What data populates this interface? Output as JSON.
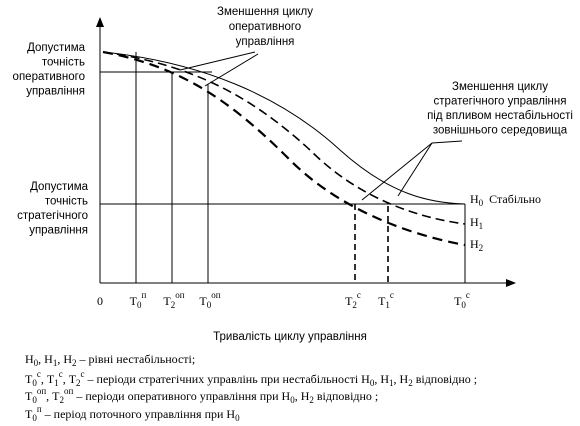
{
  "top_label": [
    "Зменшення циклу",
    "оперативного",
    "управління"
  ],
  "left_top_label": [
    "Допустима",
    "точність",
    "оперативного",
    "управління"
  ],
  "right_label": [
    "Зменшення циклу",
    "стратегічного управління",
    "під впливом нестабільності",
    "зовнішнього середовища"
  ],
  "left_bottom_label": [
    "Допустима",
    "точність",
    "стратегічного",
    "управління"
  ],
  "curve_labels": [
    {
      "base": "H",
      "sub": "0",
      "extra": "Стабільно"
    },
    {
      "base": "H",
      "sub": "1"
    },
    {
      "base": "H",
      "sub": "2"
    }
  ],
  "origin": "0",
  "x_labels": [
    {
      "base": "T",
      "sub": "0",
      "sup": "п"
    },
    {
      "base": "T",
      "sub": "2",
      "sup": "оп"
    },
    {
      "base": "T",
      "sub": "0",
      "sup": "оп"
    },
    {
      "base": "T",
      "sub": "2",
      "sup": "с"
    },
    {
      "base": "T",
      "sub": "1",
      "sup": "с"
    },
    {
      "base": "T",
      "sub": "0",
      "sup": "с"
    }
  ],
  "x_title": "Тривалість циклу управління",
  "notes": [
    [
      {
        "text": "H"
      },
      {
        "sub": "0"
      },
      {
        "text": ", H"
      },
      {
        "sub": "1"
      },
      {
        "text": ", H"
      },
      {
        "sub": "2"
      },
      {
        "text": " – рівні нестабільності;"
      }
    ],
    [
      {
        "text": "T"
      },
      {
        "sub": "0"
      },
      {
        "sup": "с"
      },
      {
        "text": ", T"
      },
      {
        "sub": "1"
      },
      {
        "sup": "с"
      },
      {
        "text": ", T"
      },
      {
        "sub": "2"
      },
      {
        "sup": "с"
      },
      {
        "text": " – періоди стратегічних управлінь при нестабільності    H"
      },
      {
        "sub": "0"
      },
      {
        "text": ", H"
      },
      {
        "sub": "1"
      },
      {
        "text": ", H"
      },
      {
        "sub": "2"
      },
      {
        "text": " відповідно ;"
      }
    ],
    [
      {
        "text": "T"
      },
      {
        "sub": "0"
      },
      {
        "sup": "оп"
      },
      {
        "text": ", T"
      },
      {
        "sub": "2"
      },
      {
        "sup": "оп"
      },
      {
        "text": " – періоди оперативного управління при     H"
      },
      {
        "sub": "0"
      },
      {
        "text": ", H"
      },
      {
        "sub": "2"
      },
      {
        "text": " відповідно ;"
      }
    ],
    [
      {
        "text": "T"
      },
      {
        "sub": "0"
      },
      {
        "sup": "п"
      },
      {
        "text": " – період поточного управління при     H"
      },
      {
        "sub": "0"
      }
    ]
  ]
}
